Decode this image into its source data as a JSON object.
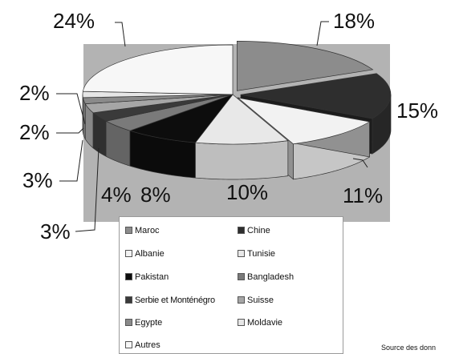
{
  "chart_data": {
    "type": "pie",
    "style": "3d-exploded-grayscale",
    "categories": [
      "Maroc",
      "Chine",
      "Albanie",
      "Tunisie",
      "Pakistan",
      "Bangladesh",
      "Serbie et Monténégro",
      "Suisse",
      "Egypte",
      "Moldavie",
      "Autres"
    ],
    "values": [
      18,
      15,
      11,
      10,
      8,
      4,
      3,
      3,
      2,
      2,
      24
    ],
    "value_labels": [
      "18%",
      "15%",
      "11%",
      "10%",
      "8%",
      "4%",
      "3%",
      "3%",
      "2%",
      "2%",
      "24%"
    ],
    "colors": [
      "#8c8c8c",
      "#2e2e2e",
      "#f2f2f2",
      "#e8e8e8",
      "#0d0d0d",
      "#7a7a7a",
      "#3a3a3a",
      "#a6a6a6",
      "#8a8a8a",
      "#e6e6e6",
      "#f7f7f7"
    ],
    "legend_position": "bottom",
    "plot_background": "#b3b3b3"
  },
  "legend": {
    "items": [
      {
        "label": "Maroc",
        "color": "#8c8c8c"
      },
      {
        "label": "Chine",
        "color": "#2e2e2e"
      },
      {
        "label": "Albanie",
        "color": "#f2f2f2"
      },
      {
        "label": "Tunisie",
        "color": "#e8e8e8"
      },
      {
        "label": "Pakistan",
        "color": "#0d0d0d"
      },
      {
        "label": "Bangladesh",
        "color": "#7a7a7a"
      },
      {
        "label": "Serbie et Monténégro",
        "color": "#3a3a3a"
      },
      {
        "label": "Suisse",
        "color": "#a6a6a6"
      },
      {
        "label": "Egypte",
        "color": "#8a8a8a"
      },
      {
        "label": "Moldavie",
        "color": "#e6e6e6"
      },
      {
        "label": "Autres",
        "color": "#f7f7f7"
      }
    ]
  },
  "source_text": "Source des donn"
}
